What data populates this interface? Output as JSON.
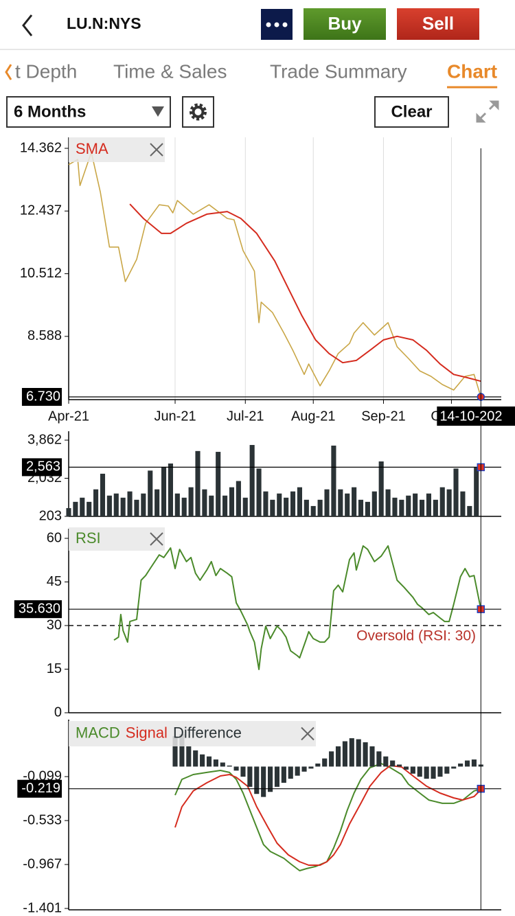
{
  "header": {
    "symbol": "LU.N:NYS",
    "buy": "Buy",
    "sell": "Sell"
  },
  "tabs": [
    "t Depth",
    "Time & Sales",
    "Trade Summary",
    "Chart"
  ],
  "active_tab": 3,
  "controls": {
    "period": "6 Months",
    "clear": "Clear"
  },
  "chart_data": [
    {
      "type": "line",
      "xlim": [
        0,
        191
      ],
      "xticks": [
        {
          "value": 0,
          "label": "Apr-21"
        },
        {
          "value": 47,
          "label": "Jun-21"
        },
        {
          "value": 78,
          "label": "Jul-21"
        },
        {
          "value": 108,
          "label": "Aug-21"
        },
        {
          "value": 139,
          "label": "Sep-21"
        },
        {
          "value": 169,
          "label": "Oct-21"
        }
      ],
      "ylim": [
        6.73,
        14.362
      ],
      "yticks": [
        8.588,
        10.512,
        12.437,
        14.362
      ],
      "grid": true,
      "cursor_x": {
        "value": 182,
        "label": "14-10-202"
      },
      "cursor_value": {
        "value": 6.73,
        "label": "6.730"
      },
      "series": [
        {
          "color": "#c9a646",
          "x": [
            0,
            4,
            5,
            10,
            14,
            18,
            22,
            25,
            30,
            34,
            40,
            44,
            46,
            48,
            55,
            62,
            70,
            73,
            77,
            82,
            84,
            85,
            90,
            95,
            99,
            104,
            106,
            111,
            115,
            119,
            124,
            126,
            130,
            135,
            141,
            145,
            150,
            155,
            160,
            165,
            170,
            175,
            179,
            182
          ],
          "values": [
            13.86,
            14.02,
            13.22,
            14.24,
            13.01,
            11.33,
            11.33,
            10.27,
            10.95,
            12.06,
            12.63,
            12.59,
            12.38,
            12.76,
            12.34,
            12.63,
            12.21,
            12.17,
            11.22,
            10.59,
            9.01,
            9.64,
            9.32,
            8.69,
            8.16,
            7.42,
            7.74,
            7.07,
            7.53,
            8.06,
            8.37,
            8.69,
            9.01,
            8.63,
            9.01,
            8.27,
            7.91,
            7.53,
            7.36,
            7.11,
            6.94,
            7.36,
            7.42,
            6.73
          ]
        },
        {
          "name": "SMA",
          "color": "#d52b1e",
          "x": [
            27,
            33,
            41,
            45,
            52,
            61,
            70,
            76,
            83,
            91,
            97,
            103,
            109,
            115,
            121,
            127,
            133,
            139,
            145,
            152,
            158,
            164,
            170,
            176,
            182
          ],
          "values": [
            12.65,
            12.21,
            11.75,
            11.75,
            12.06,
            12.34,
            12.42,
            12.21,
            11.75,
            10.9,
            10.06,
            9.22,
            8.48,
            8.06,
            7.78,
            7.85,
            8.16,
            8.48,
            8.59,
            8.48,
            8.16,
            7.74,
            7.42,
            7.32,
            7.21
          ]
        }
      ]
    },
    {
      "type": "bar",
      "xlim": [
        0,
        191
      ],
      "color": "#2b3336",
      "ylim": [
        203,
        3862
      ],
      "yticks": [
        203,
        {
          "value": 2032,
          "label": "2,032"
        },
        {
          "value": 3862,
          "label": "3,862"
        }
      ],
      "cursor_value": {
        "value": 2563,
        "label": "2,563"
      },
      "x": [
        0,
        3,
        6,
        9,
        12,
        15,
        18,
        21,
        24,
        27,
        30,
        33,
        36,
        39,
        42,
        45,
        48,
        51,
        54,
        57,
        60,
        63,
        66,
        69,
        72,
        75,
        78,
        81,
        84,
        87,
        90,
        93,
        96,
        99,
        102,
        105,
        108,
        111,
        114,
        117,
        120,
        123,
        126,
        129,
        132,
        135,
        138,
        141,
        144,
        147,
        150,
        153,
        156,
        159,
        162,
        165,
        168,
        171,
        174,
        177,
        180
      ],
      "values": [
        600,
        900,
        1100,
        900,
        1500,
        2250,
        1200,
        1300,
        1100,
        1400,
        1000,
        1300,
        2400,
        1500,
        2580,
        2740,
        1300,
        1100,
        1600,
        3340,
        1500,
        1200,
        3300,
        1200,
        1600,
        1900,
        1100,
        3630,
        2500,
        1400,
        1000,
        1300,
        1100,
        1400,
        1600,
        1000,
        700,
        1000,
        1500,
        3600,
        1500,
        1300,
        1600,
        1000,
        900,
        1400,
        2840,
        1500,
        1100,
        1000,
        1200,
        1300,
        1000,
        1300,
        1000,
        1600,
        1500,
        2500,
        1400,
        700,
        2563
      ]
    },
    {
      "type": "line",
      "xlim": [
        0,
        191
      ],
      "ylim": [
        0,
        60
      ],
      "yticks": [
        0,
        15,
        30,
        45,
        60
      ],
      "threshold": {
        "value": 30,
        "label": "Oversold (RSI: 30)"
      },
      "cursor_value": {
        "value": 35.63,
        "label": "35.630"
      },
      "series": [
        {
          "name": "RSI",
          "color": "#4a8a2a",
          "x": [
            20,
            22,
            23,
            24,
            26,
            27,
            30,
            32,
            34,
            36,
            40,
            42,
            45,
            47,
            49,
            52,
            54,
            56,
            58,
            61,
            63,
            65,
            67,
            70,
            72,
            74,
            76,
            79,
            80,
            82,
            84,
            85,
            87,
            89,
            92,
            94,
            96,
            98,
            101,
            102,
            105,
            106,
            108,
            111,
            113,
            115,
            117,
            119,
            121,
            124,
            126,
            127,
            130,
            132,
            135,
            138,
            141,
            143,
            145,
            148,
            152,
            154,
            156,
            159,
            161,
            164,
            166,
            168,
            170,
            173,
            175,
            177,
            179,
            182
          ],
          "values": [
            25,
            26,
            33.8,
            28.3,
            24.3,
            31.4,
            32.1,
            45.6,
            47.2,
            49.6,
            54.3,
            53.4,
            56.7,
            49.6,
            56.2,
            52,
            53.4,
            48,
            45.6,
            49.1,
            52,
            47.2,
            49.6,
            48,
            46.8,
            37.8,
            35,
            30.2,
            27.9,
            24.3,
            14.9,
            22,
            29.8,
            25.5,
            29.8,
            28.3,
            26,
            21.3,
            19.6,
            18.9,
            25.5,
            27.9,
            25.5,
            24.3,
            24.3,
            26,
            42,
            43.9,
            41.6,
            52.7,
            55,
            49.1,
            57.4,
            56.2,
            52,
            53.9,
            57.4,
            51.5,
            45.6,
            43.2,
            39.7,
            37.3,
            36.1,
            33.8,
            34.5,
            32.6,
            31.4,
            31.4,
            37.3,
            46.8,
            49.6,
            46.8,
            47.2,
            35.63
          ]
        }
      ]
    },
    {
      "type": "line",
      "xlim": [
        0,
        191
      ],
      "ylim": [
        -1.401,
        0.44
      ],
      "yticks": [
        -1.401,
        -0.967,
        -0.533,
        -0.099
      ],
      "cursor_value": {
        "value": -0.219,
        "label": "-0.219"
      },
      "series": [
        {
          "name": "MACD",
          "color": "#4a8a2a",
          "x": [
            47,
            50,
            55,
            61,
            67,
            71,
            74,
            77,
            80,
            83,
            86,
            89,
            92,
            95,
            98,
            102,
            105,
            109,
            114,
            117,
            120,
            123,
            126,
            129,
            133,
            138,
            142,
            147,
            150,
            155,
            159,
            165,
            170,
            174,
            179,
            182
          ],
          "values": [
            -0.282,
            -0.126,
            -0.079,
            -0.058,
            -0.038,
            -0.058,
            -0.126,
            -0.262,
            -0.431,
            -0.601,
            -0.77,
            -0.838,
            -0.872,
            -0.906,
            -0.96,
            -1.028,
            -1.008,
            -0.987,
            -0.94,
            -0.804,
            -0.635,
            -0.431,
            -0.262,
            -0.126,
            -0.011,
            0.03,
            -0.011,
            -0.079,
            -0.174,
            -0.262,
            -0.33,
            -0.363,
            -0.363,
            -0.33,
            -0.241,
            -0.219
          ]
        },
        {
          "name": "Signal",
          "color": "#d52b1e",
          "x": [
            47,
            50,
            55,
            61,
            67,
            71,
            74,
            79,
            83,
            88,
            92,
            97,
            102,
            106,
            111,
            114,
            117,
            120,
            124,
            129,
            133,
            138,
            142,
            147,
            152,
            158,
            164,
            170,
            174,
            179,
            182
          ],
          "values": [
            -0.601,
            -0.397,
            -0.241,
            -0.16,
            -0.092,
            -0.079,
            -0.106,
            -0.194,
            -0.397,
            -0.601,
            -0.757,
            -0.872,
            -0.94,
            -0.974,
            -0.974,
            -0.94,
            -0.872,
            -0.77,
            -0.567,
            -0.363,
            -0.194,
            -0.058,
            0.01,
            -0.004,
            -0.092,
            -0.194,
            -0.262,
            -0.309,
            -0.33,
            -0.296,
            -0.228
          ]
        },
        {
          "name": "Difference",
          "color": "#2b3336",
          "type": "bar",
          "x": [
            47,
            50,
            53,
            56,
            59,
            62,
            65,
            68,
            71,
            74,
            77,
            80,
            83,
            86,
            89,
            92,
            95,
            98,
            101,
            104,
            107,
            110,
            113,
            116,
            119,
            122,
            125,
            128,
            131,
            134,
            137,
            140,
            143,
            146,
            149,
            152,
            155,
            158,
            161,
            164,
            167,
            170,
            173,
            176,
            179,
            182
          ],
          "values": [
            0.3,
            0.32,
            0.2,
            0.16,
            0.12,
            0.1,
            0.07,
            0.04,
            0.01,
            -0.04,
            -0.1,
            -0.2,
            -0.27,
            -0.3,
            -0.25,
            -0.2,
            -0.16,
            -0.12,
            -0.09,
            -0.05,
            -0.02,
            0.03,
            0.08,
            0.15,
            0.2,
            0.25,
            0.28,
            0.27,
            0.24,
            0.2,
            0.15,
            0.1,
            0.06,
            0.02,
            -0.03,
            -0.07,
            -0.1,
            -0.12,
            -0.12,
            -0.1,
            -0.07,
            -0.02,
            0.03,
            0.06,
            0.07,
            0.02
          ]
        }
      ]
    }
  ]
}
